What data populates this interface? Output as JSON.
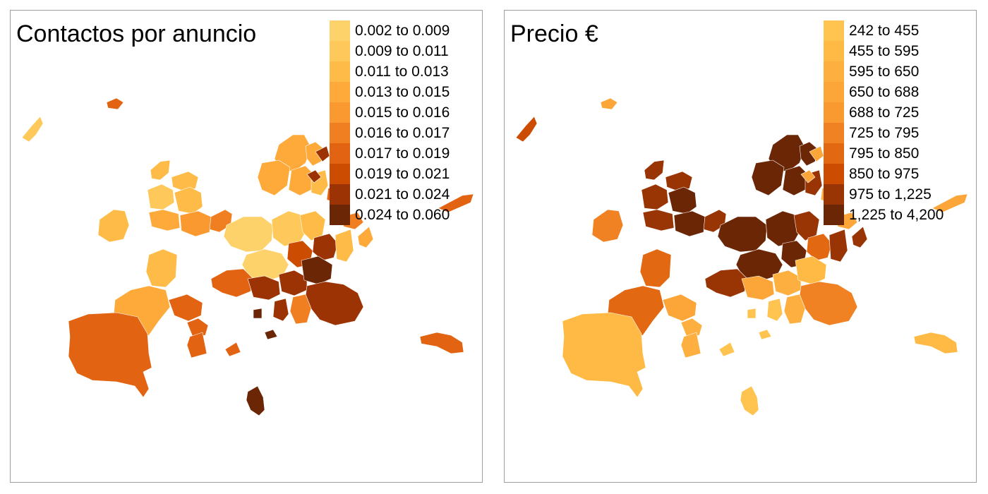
{
  "panels": [
    {
      "title": "Contactos por anuncio",
      "legend": [
        {
          "label": "0.002 to 0.009",
          "color": "#fed26a"
        },
        {
          "label": "0.009 to 0.011",
          "color": "#fec95a"
        },
        {
          "label": "0.011 to 0.013",
          "color": "#febb47"
        },
        {
          "label": "0.013 to 0.015",
          "color": "#feaa3b"
        },
        {
          "label": "0.015 to 0.016",
          "color": "#fa992f"
        },
        {
          "label": "0.016 to 0.017",
          "color": "#f07f22"
        },
        {
          "label": "0.017 to 0.019",
          "color": "#e26312"
        },
        {
          "label": "0.019 to 0.021",
          "color": "#cc4c02"
        },
        {
          "label": "0.021 to 0.024",
          "color": "#9c3304"
        },
        {
          "label": "0.024 to 0.060",
          "color": "#6b2606"
        }
      ]
    },
    {
      "title": "Precio €",
      "legend": [
        {
          "label": "242 to 455",
          "color": "#fec44f"
        },
        {
          "label": "455 to 595",
          "color": "#feba45"
        },
        {
          "label": "595 to 650",
          "color": "#fdb03f"
        },
        {
          "label": "650 to 688",
          "color": "#fca538"
        },
        {
          "label": "688 to 725",
          "color": "#f99a31"
        },
        {
          "label": "725 to 795",
          "color": "#f08224"
        },
        {
          "label": "795 to 850",
          "color": "#e26812"
        },
        {
          "label": "850 to 975",
          "color": "#cc4c02"
        },
        {
          "label": "975 to 1,225",
          "color": "#993404"
        },
        {
          "label": "1,225 to 4,200",
          "color": "#6b2606"
        }
      ]
    }
  ]
}
